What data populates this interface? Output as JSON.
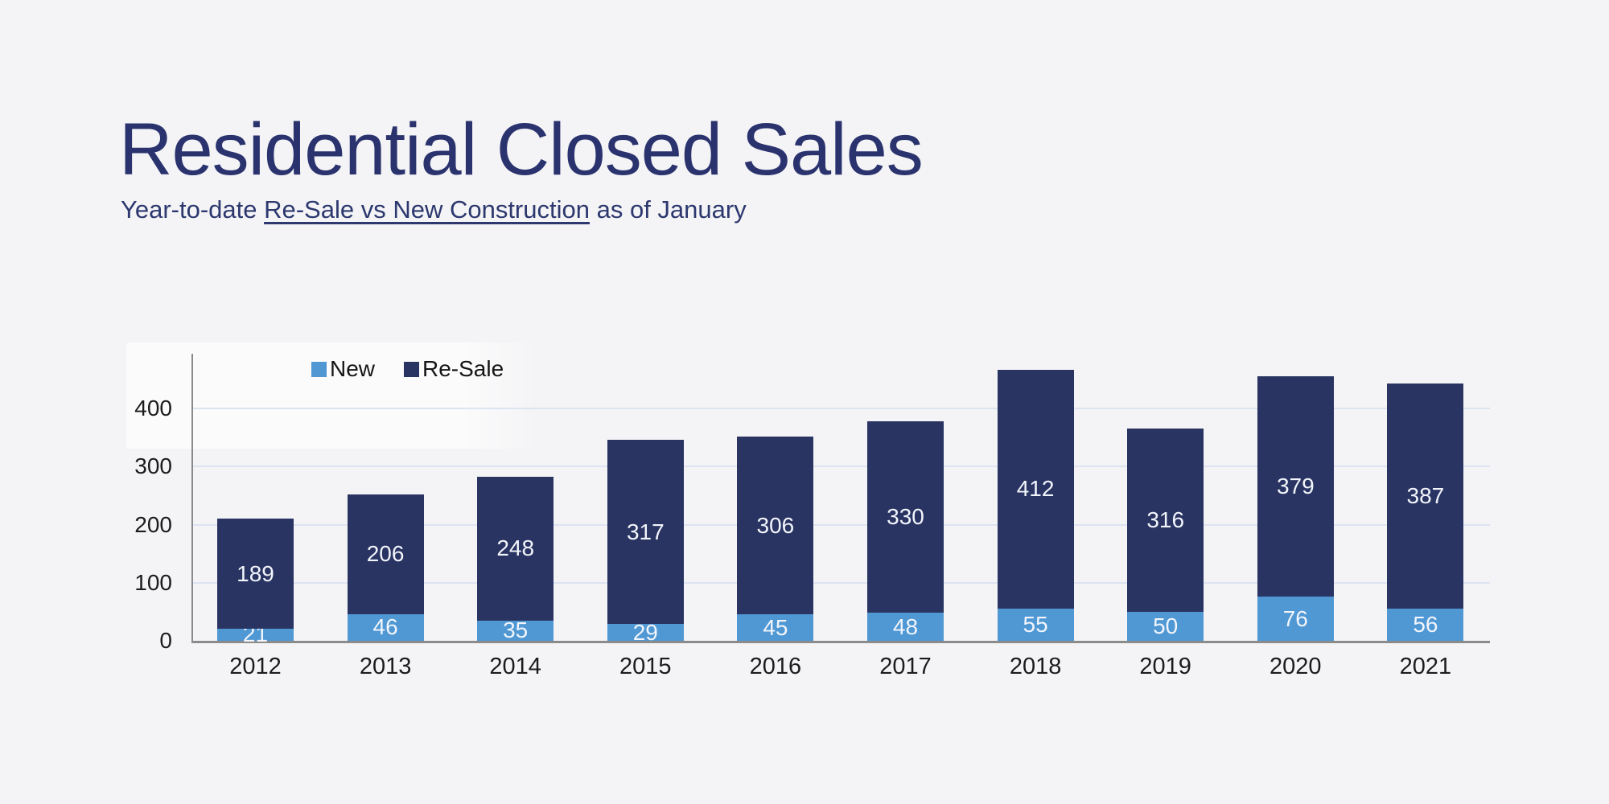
{
  "header": {
    "title": "Residential Closed Sales",
    "subtitle_prefix": "Year-to-date ",
    "subtitle_underlined": "Re-Sale vs New Construction",
    "subtitle_suffix": " as of January"
  },
  "chart_data": {
    "type": "bar",
    "stacked": true,
    "title": "Residential Closed Sales",
    "subtitle": "Year-to-date Re-Sale vs New Construction as of January",
    "categories": [
      "2012",
      "2013",
      "2014",
      "2015",
      "2016",
      "2017",
      "2018",
      "2019",
      "2020",
      "2021"
    ],
    "series": [
      {
        "name": "New",
        "color": "#4f98d4",
        "values": [
          21,
          46,
          35,
          29,
          45,
          48,
          55,
          50,
          76,
          56
        ]
      },
      {
        "name": "Re-Sale",
        "color": "#293462",
        "values": [
          189,
          206,
          248,
          317,
          306,
          330,
          412,
          316,
          379,
          387
        ]
      }
    ],
    "totals": [
      210,
      252,
      283,
      346,
      351,
      378,
      467,
      366,
      455,
      443
    ],
    "xlabel": "",
    "ylabel": "",
    "ylim": [
      0,
      450
    ],
    "yticks": [
      0,
      100,
      200,
      300,
      400
    ],
    "grid": true,
    "legend_position": "top-left-inside",
    "value_labels": "white numbers centered inside each stacked segment"
  },
  "colors": {
    "page_background": "#f4f4f6",
    "title_text": "#2a336e",
    "new_series": "#4f98d4",
    "resale_series": "#293462",
    "gridline": "#dde3f1",
    "axis_line": "#8b8b8b",
    "tick_text": "#1c1c1c",
    "bar_value_text": "#f2f5fb"
  }
}
